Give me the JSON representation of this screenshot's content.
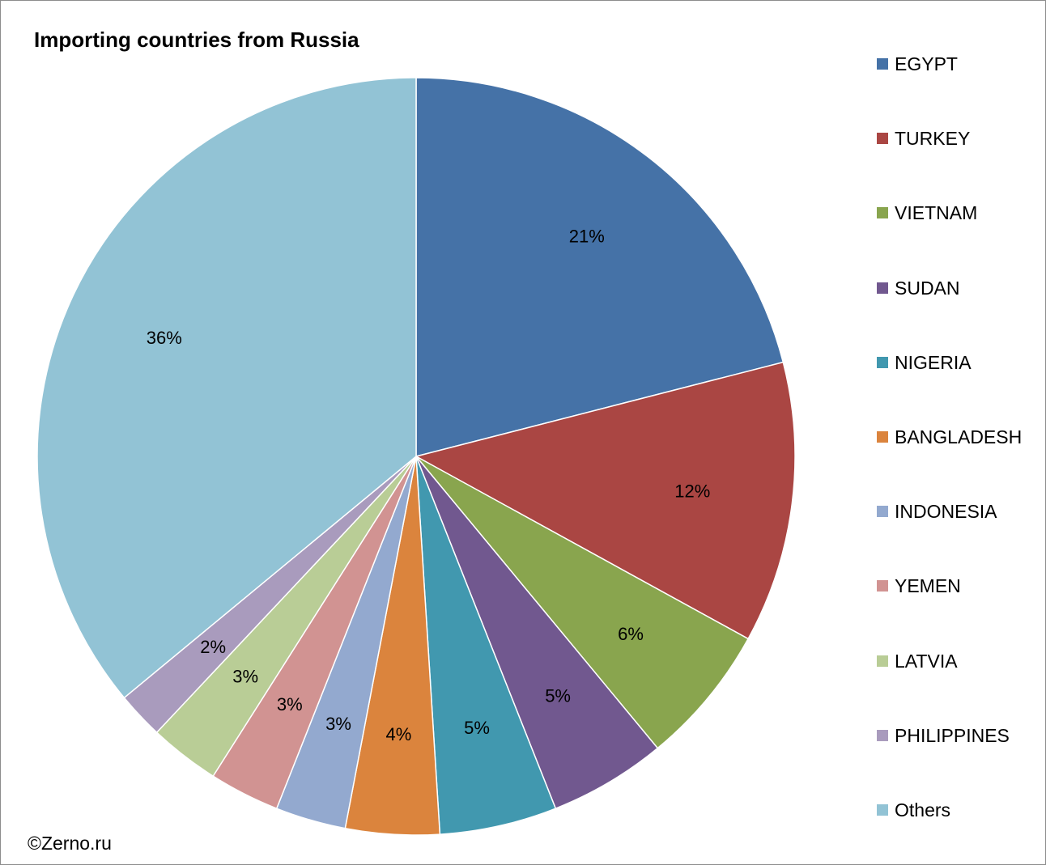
{
  "chart_data": {
    "type": "pie",
    "title": "Importing countries from Russia",
    "start_angle_deg": 0,
    "direction": "clockwise",
    "legend_position": "right",
    "slices": [
      {
        "label": "EGYPT",
        "value": 21,
        "display": "21%",
        "color": "#4572a7"
      },
      {
        "label": "TURKEY",
        "value": 12,
        "display": "12%",
        "color": "#aa4643"
      },
      {
        "label": "VIETNAM",
        "value": 6,
        "display": "6%",
        "color": "#89a54e"
      },
      {
        "label": "SUDAN",
        "value": 5,
        "display": "5%",
        "color": "#71588f"
      },
      {
        "label": "NIGERIA",
        "value": 5,
        "display": "5%",
        "color": "#4198af"
      },
      {
        "label": "BANGLADESH",
        "value": 4,
        "display": "4%",
        "color": "#db843d"
      },
      {
        "label": "INDONESIA",
        "value": 3,
        "display": "3%",
        "color": "#93a9cf"
      },
      {
        "label": "YEMEN",
        "value": 3,
        "display": "3%",
        "color": "#d19392"
      },
      {
        "label": "LATVIA",
        "value": 3,
        "display": "3%",
        "color": "#b9cd96"
      },
      {
        "label": "PHILIPPINES",
        "value": 2,
        "display": "2%",
        "color": "#a99bbd"
      },
      {
        "label": "Others",
        "value": 36,
        "display": "36%",
        "color": "#92c3d5"
      }
    ]
  },
  "credit": "©Zerno.ru"
}
